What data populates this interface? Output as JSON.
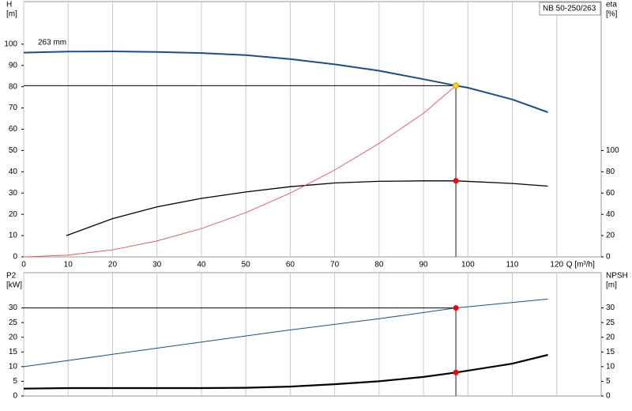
{
  "chart_data": [
    {
      "type": "line",
      "ylabel": [
        "H",
        "[m]"
      ],
      "y2label": [
        "eta",
        "[%]"
      ],
      "xlabel": "Q [m³/h]",
      "annotation": "263 mm",
      "model": "NB 50-250/263",
      "xlim": [
        0,
        130
      ],
      "xticks": [
        0,
        10,
        20,
        30,
        40,
        50,
        60,
        70,
        80,
        90,
        100,
        110,
        120
      ],
      "ylim": [
        0,
        120
      ],
      "yticks": [
        0,
        10,
        20,
        30,
        40,
        50,
        60,
        70,
        80,
        90,
        100
      ],
      "y2lim": [
        0,
        240
      ],
      "y2ticks": [
        0,
        20,
        40,
        60,
        80,
        100
      ],
      "grid": true,
      "series": [
        {
          "color": "#1b4f8a",
          "line_width": 2,
          "x": [
            0,
            10,
            20,
            30,
            40,
            50,
            60,
            70,
            80,
            90,
            97.3,
            100,
            110,
            118
          ],
          "values": [
            96,
            96.5,
            96.6,
            96.3,
            95.8,
            94.8,
            93,
            90.5,
            87.5,
            83.5,
            80.5,
            79.5,
            74,
            68
          ]
        },
        {
          "color": "#000000",
          "line_width": 1.3,
          "axis": "y2",
          "x": [
            9.6,
            20,
            30,
            40,
            50,
            60,
            70,
            80,
            90,
            97.3,
            110,
            118
          ],
          "values": [
            20,
            36,
            47,
            55,
            61,
            66,
            69.5,
            71,
            71.5,
            71.5,
            69,
            66.5
          ]
        },
        {
          "color": "#ff3b3b",
          "line_width": 0.8,
          "x": [
            0,
            10,
            20,
            30,
            40,
            50,
            60,
            70,
            80,
            90,
            97.3
          ],
          "values": [
            0,
            0.8,
            3.3,
            7.5,
            13.3,
            20.8,
            30,
            40.8,
            53.3,
            67.5,
            80.5
          ]
        }
      ],
      "points": [
        {
          "x": 97.3,
          "y": 80.5,
          "color": "#ffd700"
        },
        {
          "x": 97.3,
          "y": 71.5,
          "axis": "y2",
          "color": "#ff0000"
        }
      ]
    },
    {
      "type": "line",
      "ylabel": [
        "P2",
        "[kW]"
      ],
      "y2label": [
        "NPSH",
        "[m]"
      ],
      "xlim": [
        0,
        130
      ],
      "xticks": [
        0,
        10,
        20,
        30,
        40,
        50,
        60,
        70,
        80,
        90,
        100,
        110,
        120
      ],
      "ylim": [
        0,
        42
      ],
      "yticks": [
        0,
        5,
        10,
        15,
        20,
        25,
        30
      ],
      "y2lim": [
        0,
        42
      ],
      "y2ticks": [
        0,
        5,
        10,
        15,
        20,
        25,
        30
      ],
      "grid": true,
      "series": [
        {
          "color": "#1b4f8a",
          "line_width": 1,
          "x": [
            0,
            20,
            40,
            60,
            80,
            97.3,
            118
          ],
          "values": [
            10,
            14.2,
            18.4,
            22.5,
            26.3,
            30,
            33
          ]
        },
        {
          "color": "#000000",
          "line_width": 2.2,
          "axis": "y2",
          "x": [
            0,
            10,
            20,
            40,
            50,
            60,
            70,
            80,
            90,
            97.3,
            110,
            118
          ],
          "values": [
            2.5,
            2.7,
            2.7,
            2.7,
            2.8,
            3.2,
            4,
            5,
            6.5,
            8,
            11,
            14
          ]
        }
      ],
      "points": [
        {
          "x": 97.3,
          "y": 30,
          "color": "#ff0000"
        },
        {
          "x": 97.3,
          "y": 8,
          "axis": "y2",
          "color": "#ff0000"
        }
      ]
    }
  ]
}
